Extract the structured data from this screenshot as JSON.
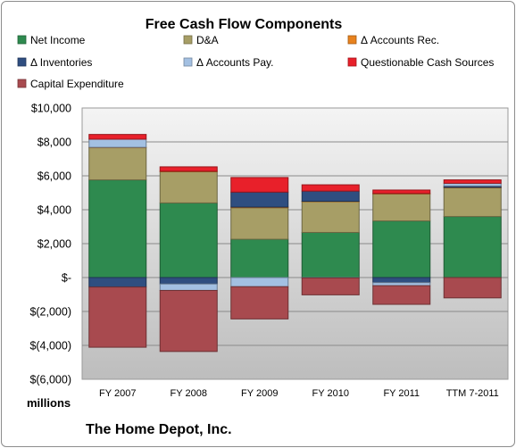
{
  "chart_data": {
    "type": "bar",
    "stacked": true,
    "title": "Free Cash Flow Components",
    "unit_label": "millions",
    "footer": "The Home Depot, Inc.",
    "categories": [
      "FY 2007",
      "FY 2008",
      "FY 2009",
      "FY 2010",
      "FY 2011",
      "TTM 7-2011"
    ],
    "ylim": [
      -6000,
      10000
    ],
    "y_ticks": [
      10000,
      8000,
      6000,
      4000,
      2000,
      0,
      -2000,
      -4000,
      -6000
    ],
    "y_tick_labels": [
      "$10,000",
      "$8,000",
      "$6,000",
      "$4,000",
      "$2,000",
      "$-",
      "$(2,000)",
      "$(4,000)",
      "$(6,000)"
    ],
    "grid": true,
    "legend_position": "top",
    "series": [
      {
        "name": "Net Income",
        "color": "#2e8a4f",
        "values": [
          5760,
          4400,
          2260,
          2660,
          3340,
          3600
        ]
      },
      {
        "name": "D&A",
        "color": "#a79e66",
        "values": [
          1900,
          1850,
          1860,
          1820,
          1600,
          1700
        ]
      },
      {
        "name": "Δ Accounts Rec.",
        "color": "#e8821e",
        "values": [
          20,
          20,
          40,
          20,
          20,
          20
        ]
      },
      {
        "name": "Δ Inventories",
        "color": "#2f4e80",
        "values": [
          -560,
          -380,
          880,
          600,
          -300,
          80
        ]
      },
      {
        "name": "Δ Accounts Pay.",
        "color": "#a3c0e2",
        "values": [
          480,
          -380,
          -540,
          -20,
          -180,
          160
        ]
      },
      {
        "name": "Questionable Cash Sources",
        "color": "#e8202a",
        "values": [
          280,
          260,
          860,
          370,
          200,
          200
        ]
      },
      {
        "name": "Capital Expenditure",
        "color": "#a84a4f",
        "values": [
          -3550,
          -3600,
          -1900,
          -1000,
          -1100,
          -1200
        ]
      }
    ]
  }
}
